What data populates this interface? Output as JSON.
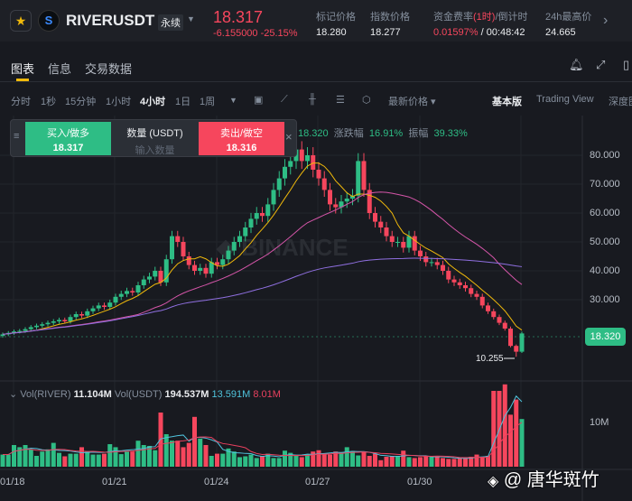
{
  "header": {
    "symbol": "RIVERUSDT",
    "contract": "永续",
    "price": "18.317",
    "change": "-6.155000 -25.15%",
    "stats": [
      {
        "label": "标记价格",
        "value": "18.280"
      },
      {
        "label": "指数价格",
        "value": "18.277"
      },
      {
        "label": "资金费率",
        "label_hl": "(1时)",
        "label_tail": "/倒计时",
        "value": "0.01597%",
        "value_tail": " / 00:48:42"
      },
      {
        "label": "24h最高价",
        "value": "24.665"
      }
    ]
  },
  "tabs": [
    "图表",
    "信息",
    "交易数据"
  ],
  "toolbar": {
    "intervals": [
      "分时",
      "1秒",
      "15分钟",
      "1小时",
      "4小时",
      "1日",
      "1周"
    ],
    "active": "4小时",
    "price_type": "最新价格",
    "views": [
      "基本版",
      "Trading View",
      "深度图"
    ]
  },
  "trade_panel": {
    "buy_label": "买入/做多",
    "buy_price": "18.317",
    "qty_label": "数量 (USDT)",
    "qty_placeholder": "输入数量",
    "sell_label": "卖出/做空",
    "sell_price": "18.316"
  },
  "ohlc_stats": {
    "close": "18.320",
    "change_label": "涨跌幅",
    "change": "16.91%",
    "amp_label": "振幅",
    "amp": "39.33%"
  },
  "volume_legend": {
    "vol_river_label": "Vol(RIVER)",
    "vol_river": "11.104M",
    "vol_usdt_label": "Vol(USDT)",
    "vol_usdt": "194.537M",
    "ma1": "13.591M",
    "ma2": "8.01M"
  },
  "watermark": "@ 唐华斑竹",
  "chart_data": {
    "type": "candlestick",
    "interval": "4h",
    "price_axis": [
      "80.000",
      "70.000",
      "60.000",
      "50.000",
      "40.000",
      "30.000"
    ],
    "ylim": [
      10,
      84
    ],
    "x_labels": [
      "01/18",
      "01/21",
      "01/24",
      "01/27",
      "01/30"
    ],
    "last_price": "18.320",
    "low_marker": "10.255",
    "volume_axis": "10M",
    "closes": [
      18,
      18.5,
      19,
      19.2,
      19.8,
      20.5,
      21,
      21.5,
      22,
      22.5,
      23,
      22.5,
      24,
      25,
      24.5,
      26,
      27,
      28,
      27.5,
      29,
      31,
      32,
      33,
      32.5,
      35,
      37,
      38,
      40,
      36,
      44,
      52,
      50,
      45,
      42,
      40,
      41,
      39,
      43,
      42,
      44,
      47,
      50,
      52,
      55,
      58,
      60,
      59,
      63,
      68,
      72,
      76,
      78,
      82,
      78,
      80,
      75,
      72,
      68,
      63,
      62,
      64,
      65,
      66,
      78,
      68,
      60,
      57,
      55,
      52,
      50,
      50,
      48,
      52,
      47,
      45,
      43,
      43,
      42,
      40,
      37,
      36,
      35,
      34,
      32,
      31,
      28,
      26,
      24,
      22,
      20,
      14,
      12,
      18.32
    ],
    "volumes_m": [
      2.8,
      2.8,
      5,
      4.5,
      5,
      4,
      2.5,
      3.5,
      4,
      5.5,
      3.2,
      2.4,
      3,
      3,
      4.5,
      3.5,
      2.8,
      2.8,
      3,
      5.2,
      4.5,
      2.9,
      3.5,
      3.5,
      6,
      5,
      4.8,
      3.8,
      12.5,
      7.5,
      6,
      6,
      4.5,
      5.5,
      11.5,
      6.5,
      5,
      2.5,
      3,
      3,
      4.2,
      3.5,
      2.2,
      2.4,
      2.8,
      2,
      2.5,
      3,
      2,
      2,
      3.7,
      3.2,
      2.5,
      2.2,
      2.8,
      3.5,
      3.8,
      3,
      2.8,
      3.5,
      3.3,
      4.5,
      3.6,
      2.6,
      3.5,
      2.5,
      3,
      1.5,
      2.3,
      2.5,
      2.5,
      3.7,
      2.2,
      2,
      2.2,
      2.5,
      2.5,
      2.2,
      2,
      1.8,
      1.8,
      2,
      2,
      2.3,
      2.8,
      2.2,
      2.5,
      17.5,
      17.5,
      19,
      12,
      15.5,
      11
    ],
    "colors": {
      "up": "#2ebd85",
      "down": "#f6465d",
      "ma7": "#f0b90b",
      "ma25": "#d455a8",
      "ma99": "#8f6fe0",
      "vol_ma1": "#4fc3dc",
      "vol_ma2": "#e8405e"
    }
  }
}
